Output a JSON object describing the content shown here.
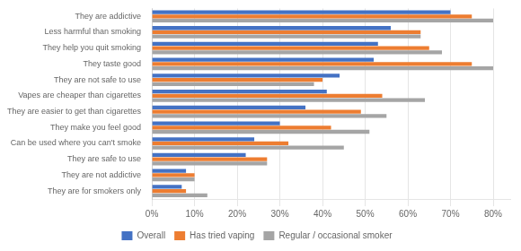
{
  "chart_data": {
    "type": "bar",
    "orientation": "horizontal",
    "categories": [
      "They are addictive",
      "Less harmful than smoking",
      "They help you quit smoking",
      "They taste good",
      "They are not safe to use",
      "Vapes are cheaper than cigarettes",
      "They are easier to get than cigarettes",
      "They make you feel good",
      "Can be used where you can't smoke",
      "They are safe to use",
      "They are not addictive",
      "They are for smokers only"
    ],
    "series": [
      {
        "name": "Overall",
        "color": "#4472C4",
        "values": [
          0.7,
          0.56,
          0.53,
          0.52,
          0.44,
          0.41,
          0.36,
          0.3,
          0.24,
          0.22,
          0.08,
          0.07
        ]
      },
      {
        "name": "Has tried vaping",
        "color": "#ED7D31",
        "values": [
          0.75,
          0.63,
          0.65,
          0.75,
          0.4,
          0.54,
          0.49,
          0.42,
          0.32,
          0.27,
          0.1,
          0.08
        ]
      },
      {
        "name": "Regular / occasional smoker",
        "color": "#A5A5A5",
        "values": [
          0.8,
          0.63,
          0.68,
          0.8,
          0.38,
          0.64,
          0.55,
          0.51,
          0.45,
          0.27,
          0.1,
          0.13
        ]
      }
    ],
    "xlim": [
      0,
      0.84
    ],
    "xticks": [
      {
        "value": 0,
        "label": "0%"
      },
      {
        "value": 0.1,
        "label": "10%"
      },
      {
        "value": 0.2,
        "label": "20%"
      },
      {
        "value": 0.3,
        "label": "30%"
      },
      {
        "value": 0.4,
        "label": "40%"
      },
      {
        "value": 0.5,
        "label": "50%"
      },
      {
        "value": 0.6,
        "label": "60%"
      },
      {
        "value": 0.7,
        "label": "70%"
      },
      {
        "value": 0.8,
        "label": "80%"
      }
    ],
    "grid": true,
    "legend": "bottom"
  }
}
